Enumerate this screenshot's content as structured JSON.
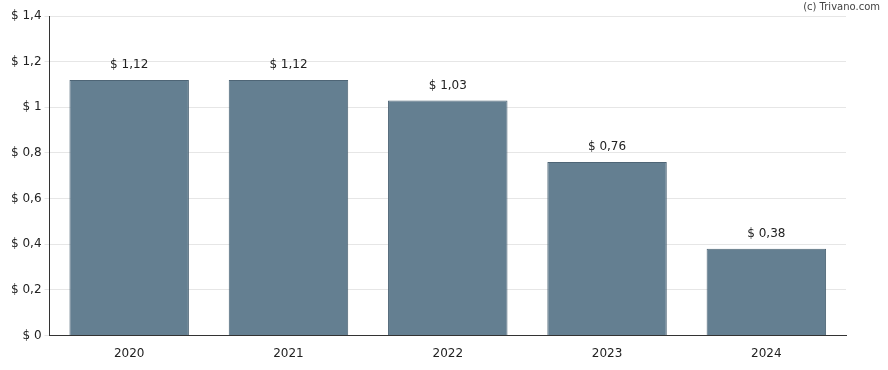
{
  "chart_data": {
    "type": "bar",
    "annotations": [
      "(c) Trivano.com"
    ],
    "categories": [
      "2020",
      "2021",
      "2022",
      "2023",
      "2024"
    ],
    "values": [
      1.12,
      1.12,
      1.03,
      0.76,
      0.38
    ],
    "value_labels": [
      "$ 1,12",
      "$ 1,12",
      "$ 1,03",
      "$ 0,76",
      "$ 0,38"
    ],
    "data_labels": true,
    "color": "#647f91",
    "ylim": [
      0,
      1.4
    ],
    "yticks": [
      {
        "value": 0,
        "label": "$ 0"
      },
      {
        "value": 0.2,
        "label": "$ 0,2"
      },
      {
        "value": 0.4,
        "label": "$ 0,4"
      },
      {
        "value": 0.6,
        "label": "$ 0,6"
      },
      {
        "value": 0.8,
        "label": "$ 0,8"
      },
      {
        "value": 1,
        "label": "$ 1"
      },
      {
        "value": 1.2,
        "label": "$ 1,2"
      },
      {
        "value": 1.4,
        "label": "$ 1,4"
      }
    ],
    "grid": true
  }
}
